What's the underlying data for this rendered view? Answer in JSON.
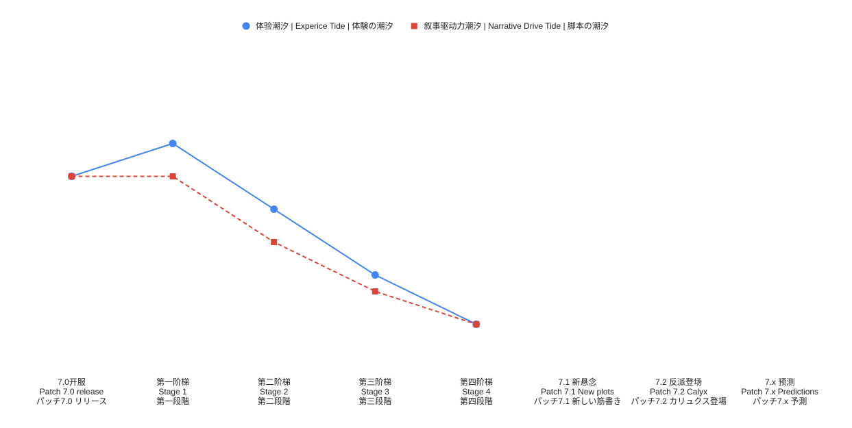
{
  "chart_data": {
    "type": "line",
    "title": "",
    "xlabel": "",
    "ylabel": "",
    "ylim": [
      0,
      10
    ],
    "grid": false,
    "legend_position": "top-center",
    "categories": [
      [
        "7.0开服",
        "Patch 7.0 release",
        "パッチ7.0 リリース"
      ],
      [
        "第一阶梯",
        "Stage 1",
        "第一段階"
      ],
      [
        "第二阶梯",
        "Stage 2",
        "第二段階"
      ],
      [
        "第三阶梯",
        "Stage 3",
        "第三段階"
      ],
      [
        "第四阶梯",
        "Stage 4",
        "第四段階"
      ],
      [
        "7.1 新悬念",
        "Patch 7.1 New plots",
        "パッチ7.1 新しい筋書き"
      ],
      [
        "7.2 反派登场",
        "Patch 7.2 Calyx",
        "パッチ7.2 カリュクス登場"
      ],
      [
        "7.x 预测",
        "Patch 7.x Predictions",
        "パッチ7.x 予測"
      ]
    ],
    "series": [
      {
        "name": "体验潮汐 | Experice Tide | 体験の潮汐",
        "color": "#4285f4",
        "marker": "circle",
        "line_style": "solid",
        "values": [
          6,
          7,
          5,
          3,
          1.5,
          null,
          null,
          null
        ]
      },
      {
        "name": "叙事驱动力潮汐 | Narrative Drive Tide | 脚本の潮汐",
        "color": "#db4437",
        "marker": "square",
        "line_style": "dashed",
        "values": [
          6,
          6,
          4,
          2.5,
          1.5,
          null,
          null,
          null
        ]
      }
    ]
  }
}
